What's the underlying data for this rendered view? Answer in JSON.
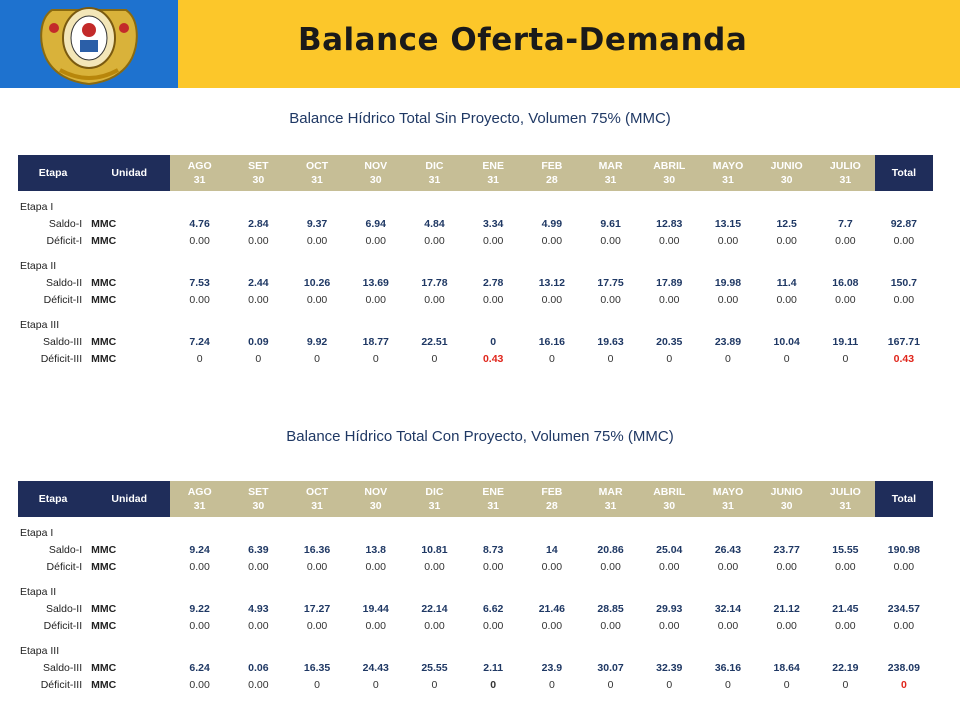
{
  "header": {
    "title": "Balance Oferta-Demanda",
    "logo_icon": "university-crest-icon"
  },
  "columns": {
    "etapa": "Etapa",
    "unidad": "Unidad",
    "total": "Total",
    "months": [
      {
        "m": "AGO",
        "d": "31"
      },
      {
        "m": "SET",
        "d": "30"
      },
      {
        "m": "OCT",
        "d": "31"
      },
      {
        "m": "NOV",
        "d": "30"
      },
      {
        "m": "DIC",
        "d": "31"
      },
      {
        "m": "ENE",
        "d": "31"
      },
      {
        "m": "FEB",
        "d": "28"
      },
      {
        "m": "MAR",
        "d": "31"
      },
      {
        "m": "ABRIL",
        "d": "30"
      },
      {
        "m": "MAYO",
        "d": "31"
      },
      {
        "m": "JUNIO",
        "d": "30"
      },
      {
        "m": "JULIO",
        "d": "31"
      }
    ]
  },
  "tables": [
    {
      "title": "Balance Hídrico Total Sin Proyecto, Volumen 75% (MMC)",
      "stages": [
        {
          "name": "Etapa I",
          "rows": [
            {
              "label": "Saldo-I",
              "unit": "MMC",
              "kind": "saldo",
              "values": [
                "4.76",
                "2.84",
                "9.37",
                "6.94",
                "4.84",
                "3.34",
                "4.99",
                "9.61",
                "12.83",
                "13.15",
                "12.5",
                "7.7",
                "92.87"
              ]
            },
            {
              "label": "Déficit-I",
              "unit": "MMC",
              "kind": "def",
              "values": [
                "0.00",
                "0.00",
                "0.00",
                "0.00",
                "0.00",
                "0.00",
                "0.00",
                "0.00",
                "0.00",
                "0.00",
                "0.00",
                "0.00",
                "0.00"
              ]
            }
          ]
        },
        {
          "name": "Etapa II",
          "rows": [
            {
              "label": "Saldo-II",
              "unit": "MMC",
              "kind": "saldo",
              "values": [
                "7.53",
                "2.44",
                "10.26",
                "13.69",
                "17.78",
                "2.78",
                "13.12",
                "17.75",
                "17.89",
                "19.98",
                "11.4",
                "16.08",
                "150.7"
              ]
            },
            {
              "label": "Déficit-II",
              "unit": "MMC",
              "kind": "def",
              "values": [
                "0.00",
                "0.00",
                "0.00",
                "0.00",
                "0.00",
                "0.00",
                "0.00",
                "0.00",
                "0.00",
                "0.00",
                "0.00",
                "0.00",
                "0.00"
              ]
            }
          ]
        },
        {
          "name": "Etapa III",
          "rows": [
            {
              "label": "Saldo-III",
              "unit": "MMC",
              "kind": "saldo",
              "values": [
                "7.24",
                "0.09",
                "9.92",
                "18.77",
                "22.51",
                "0",
                "16.16",
                "19.63",
                "20.35",
                "23.89",
                "10.04",
                "19.11",
                "167.71"
              ]
            },
            {
              "label": "Déficit-III",
              "unit": "MMC",
              "kind": "def",
              "values": [
                "0",
                "0",
                "0",
                "0",
                "0",
                "0.43",
                "0",
                "0",
                "0",
                "0",
                "0",
                "0",
                "0.43"
              ],
              "highlight": [
                5,
                12
              ]
            }
          ]
        }
      ]
    },
    {
      "title": "Balance Hídrico Total Con Proyecto, Volumen 75% (MMC)",
      "stages": [
        {
          "name": "Etapa I",
          "rows": [
            {
              "label": "Saldo-I",
              "unit": "MMC",
              "kind": "saldo",
              "values": [
                "9.24",
                "6.39",
                "16.36",
                "13.8",
                "10.81",
                "8.73",
                "14",
                "20.86",
                "25.04",
                "26.43",
                "23.77",
                "15.55",
                "190.98"
              ]
            },
            {
              "label": "Déficit-I",
              "unit": "MMC",
              "kind": "def",
              "values": [
                "0.00",
                "0.00",
                "0.00",
                "0.00",
                "0.00",
                "0.00",
                "0.00",
                "0.00",
                "0.00",
                "0.00",
                "0.00",
                "0.00",
                "0.00"
              ]
            }
          ]
        },
        {
          "name": "Etapa II",
          "rows": [
            {
              "label": "Saldo-II",
              "unit": "MMC",
              "kind": "saldo",
              "values": [
                "9.22",
                "4.93",
                "17.27",
                "19.44",
                "22.14",
                "6.62",
                "21.46",
                "28.85",
                "29.93",
                "32.14",
                "21.12",
                "21.45",
                "234.57"
              ]
            },
            {
              "label": "Déficit-II",
              "unit": "MMC",
              "kind": "def",
              "values": [
                "0.00",
                "0.00",
                "0.00",
                "0.00",
                "0.00",
                "0.00",
                "0.00",
                "0.00",
                "0.00",
                "0.00",
                "0.00",
                "0.00",
                "0.00"
              ]
            }
          ]
        },
        {
          "name": "Etapa III",
          "rows": [
            {
              "label": "Saldo-III",
              "unit": "MMC",
              "kind": "saldo",
              "values": [
                "6.24",
                "0.06",
                "16.35",
                "24.43",
                "25.55",
                "2.11",
                "23.9",
                "30.07",
                "32.39",
                "36.16",
                "18.64",
                "22.19",
                "238.09"
              ]
            },
            {
              "label": "Déficit-III",
              "unit": "MMC",
              "kind": "def",
              "values": [
                "0.00",
                "0.00",
                "0",
                "0",
                "0",
                "0",
                "0",
                "0",
                "0",
                "0",
                "0",
                "0",
                "0"
              ],
              "highlight": [
                12
              ],
              "bold": [
                5
              ]
            }
          ]
        }
      ]
    }
  ],
  "colors": {
    "header_bg": "#fcc72a",
    "logo_bg": "#1e72cf",
    "month_header": "#c6be96",
    "dark_header": "#1f2d5a",
    "value_text": "#1f3864",
    "deficit_red": "#e0251b"
  }
}
